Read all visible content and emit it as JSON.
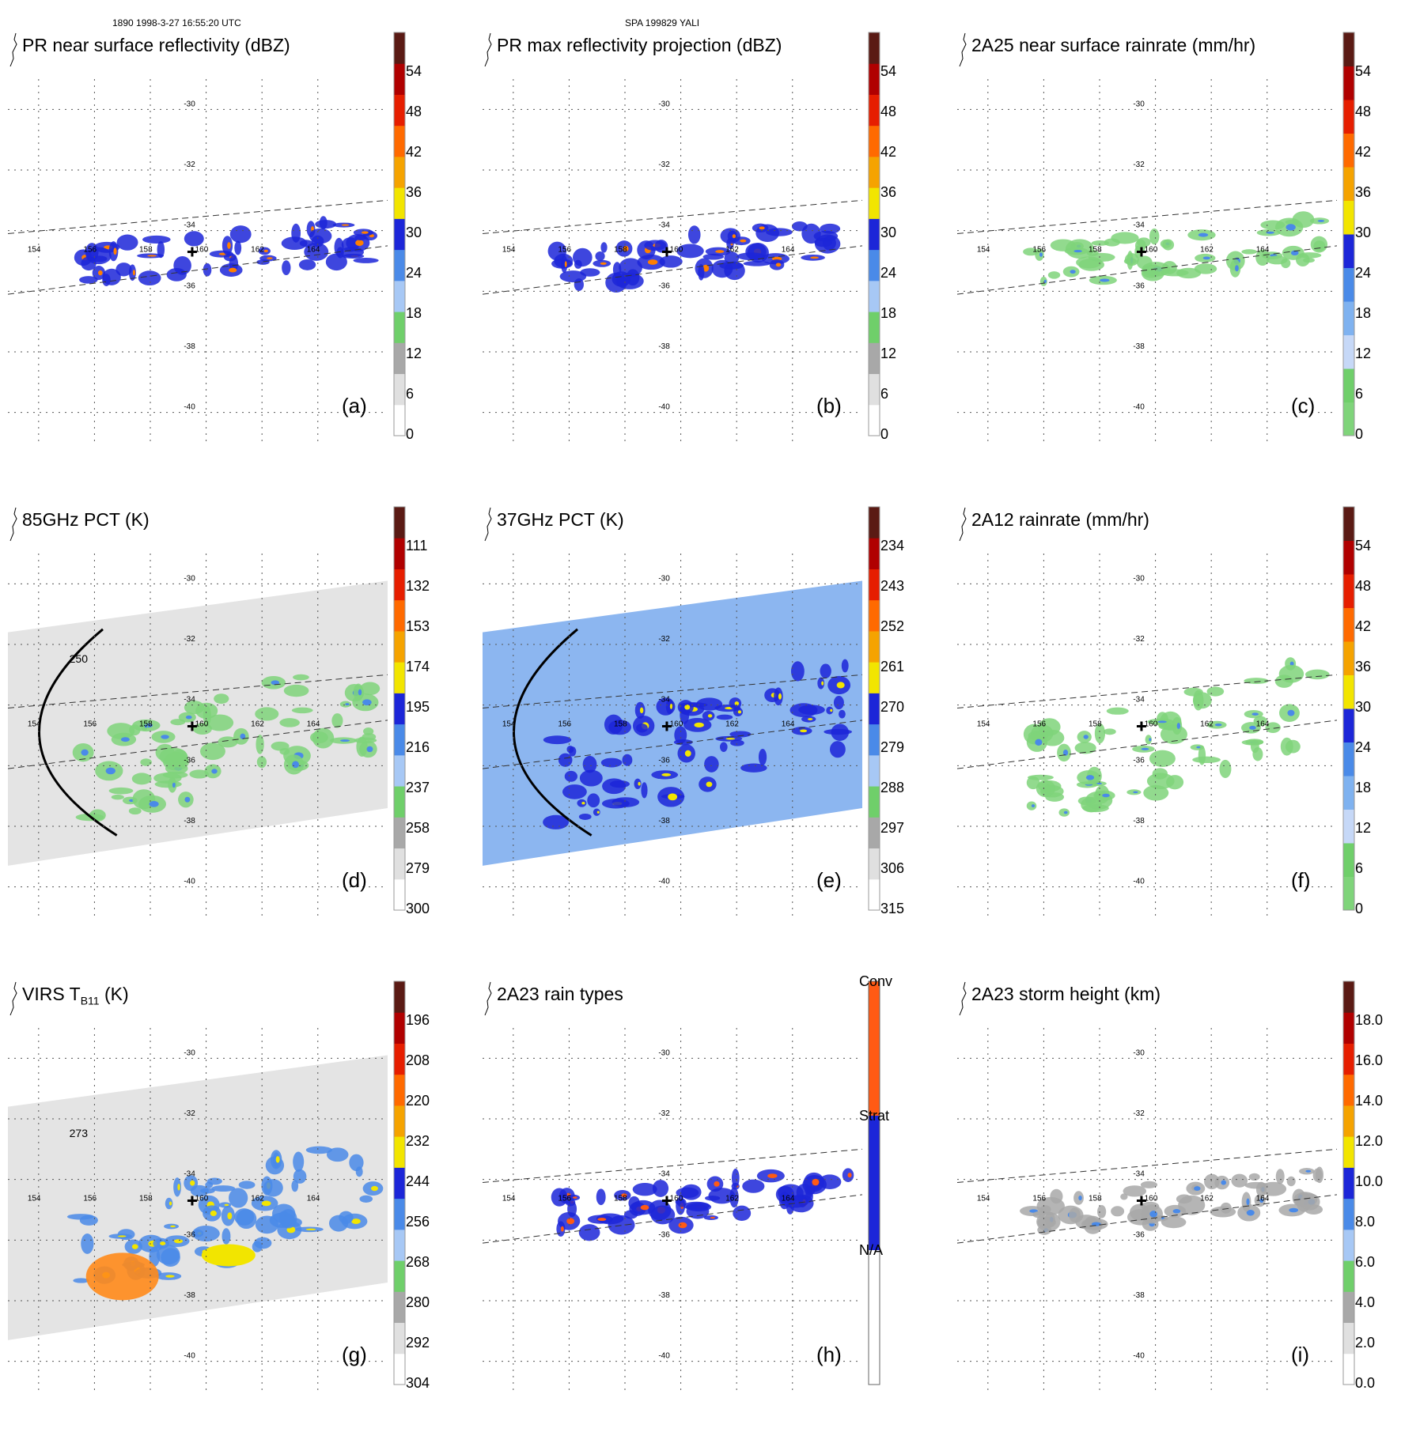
{
  "header": {
    "left": "1890 1998-3-27 16:55:20 UTC",
    "center": "SPA 199829 YALI"
  },
  "map": {
    "lon_ticks": [
      "154",
      "156",
      "158",
      "160",
      "162",
      "164"
    ],
    "lat_ticks": [
      "-30",
      "-32",
      "-34",
      "-36",
      "-38",
      "-40"
    ]
  },
  "panels": [
    {
      "id": "a",
      "title": "PR near surface reflectivity (dBZ)",
      "letter": "(a)",
      "swath": "narrow",
      "cb_labels": [
        "0",
        "6",
        "12",
        "18",
        "24",
        "30",
        "36",
        "42",
        "48",
        "54"
      ],
      "cb_colors": [
        "#ffffff",
        "#e0e0e0",
        "#a8a8a8",
        "#6fcf6a",
        "#a7c8f5",
        "#4a8ae8",
        "#1c26d8",
        "#f2e500",
        "#f5a300",
        "#ff6a00",
        "#e61e00",
        "#b00000",
        "#5a1a14"
      ],
      "feature_color": "#1c26d8",
      "accent": "#ff7f00"
    },
    {
      "id": "b",
      "title": "PR max reflectivity projection (dBZ)",
      "letter": "(b)",
      "swath": "narrow",
      "cb_labels": [
        "0",
        "6",
        "12",
        "18",
        "24",
        "30",
        "36",
        "42",
        "48",
        "54"
      ],
      "cb_colors": [
        "#ffffff",
        "#e0e0e0",
        "#a8a8a8",
        "#6fcf6a",
        "#a7c8f5",
        "#4a8ae8",
        "#1c26d8",
        "#f2e500",
        "#f5a300",
        "#ff6a00",
        "#e61e00",
        "#b00000",
        "#5a1a14"
      ],
      "feature_color": "#1c26d8",
      "accent": "#ff7f00"
    },
    {
      "id": "c",
      "title": "2A25 near surface rainrate (mm/hr)",
      "letter": "(c)",
      "swath": "narrow",
      "cb_labels": [
        "0",
        "6",
        "12",
        "18",
        "24",
        "30",
        "36",
        "42",
        "48",
        "54"
      ],
      "cb_colors": [
        "#7fd47a",
        "#6fcf6a",
        "#c6d8f7",
        "#7fb2f0",
        "#4a8ae8",
        "#1c26d8",
        "#f2e500",
        "#f5a300",
        "#ff6a00",
        "#e61e00",
        "#b00000",
        "#5a1a14"
      ],
      "feature_color": "#7fd47a",
      "accent": "#4a8ae8"
    },
    {
      "id": "d",
      "title": "85GHz PCT (K)",
      "letter": "(d)",
      "swath": "wide",
      "cb_labels": [
        "300",
        "279",
        "258",
        "237",
        "216",
        "195",
        "174",
        "153",
        "132",
        "111"
      ],
      "cb_colors": [
        "#ffffff",
        "#e0e0e0",
        "#a8a8a8",
        "#6fcf6a",
        "#a7c8f5",
        "#4a8ae8",
        "#1c26d8",
        "#f2e500",
        "#f5a300",
        "#ff6a00",
        "#e61e00",
        "#b00000",
        "#5a1a14"
      ],
      "feature_color": "#7fd47a",
      "accent": "#4a8ae8",
      "contour_label": "250"
    },
    {
      "id": "e",
      "title": "37GHz PCT (K)",
      "letter": "(e)",
      "swath": "wide",
      "cb_labels": [
        "315",
        "306",
        "297",
        "288",
        "279",
        "270",
        "261",
        "252",
        "243",
        "234"
      ],
      "cb_colors": [
        "#ffffff",
        "#e0e0e0",
        "#a8a8a8",
        "#6fcf6a",
        "#a7c8f5",
        "#4a8ae8",
        "#1c26d8",
        "#f2e500",
        "#f5a300",
        "#ff6a00",
        "#e61e00",
        "#b00000",
        "#5a1a14"
      ],
      "feature_color": "#1c26d8",
      "accent": "#f2e500"
    },
    {
      "id": "f",
      "title": "2A12 rainrate (mm/hr)",
      "letter": "(f)",
      "swath": "wide",
      "cb_labels": [
        "0",
        "6",
        "12",
        "18",
        "24",
        "30",
        "36",
        "42",
        "48",
        "54"
      ],
      "cb_colors": [
        "#7fd47a",
        "#6fcf6a",
        "#c6d8f7",
        "#7fb2f0",
        "#4a8ae8",
        "#1c26d8",
        "#f2e500",
        "#f5a300",
        "#ff6a00",
        "#e61e00",
        "#b00000",
        "#5a1a14"
      ],
      "feature_color": "#7fd47a",
      "accent": "#4a8ae8"
    },
    {
      "id": "g",
      "title_main": "VIRS T",
      "title_sub": "B11",
      "title_unit": " (K)",
      "letter": "(g)",
      "swath": "wide",
      "cb_labels": [
        "304",
        "292",
        "280",
        "268",
        "256",
        "244",
        "232",
        "220",
        "208",
        "196"
      ],
      "cb_colors": [
        "#ffffff",
        "#e0e0e0",
        "#a8a8a8",
        "#6fcf6a",
        "#a7c8f5",
        "#4a8ae8",
        "#1c26d8",
        "#f2e500",
        "#f5a300",
        "#ff6a00",
        "#e61e00",
        "#b00000",
        "#5a1a14"
      ],
      "feature_color": "#4a8ae8",
      "accent": "#f2e500",
      "contour_label": "273"
    },
    {
      "id": "h",
      "title": "2A23 rain types",
      "letter": "(h)",
      "swath": "narrow",
      "cb_type": "categorical",
      "cat_labels": [
        "N/A",
        "Strat",
        "Conv"
      ],
      "cb_colors": [
        "#ffffff",
        "#1c26d8",
        "#ff5a14"
      ],
      "feature_color": "#1c26d8",
      "accent": "#ff5a14"
    },
    {
      "id": "i",
      "title": "2A23 storm height (km)",
      "letter": "(i)",
      "swath": "narrow",
      "cb_labels": [
        "0.0",
        "2.0",
        "4.0",
        "6.0",
        "8.0",
        "10.0",
        "12.0",
        "14.0",
        "16.0",
        "18.0"
      ],
      "cb_colors": [
        "#ffffff",
        "#e0e0e0",
        "#a8a8a8",
        "#6fcf6a",
        "#a7c8f5",
        "#4a8ae8",
        "#1c26d8",
        "#f2e500",
        "#f5a300",
        "#ff6a00",
        "#e61e00",
        "#b00000",
        "#5a1a14"
      ],
      "feature_color": "#a8a8a8",
      "accent": "#4a8ae8"
    }
  ]
}
